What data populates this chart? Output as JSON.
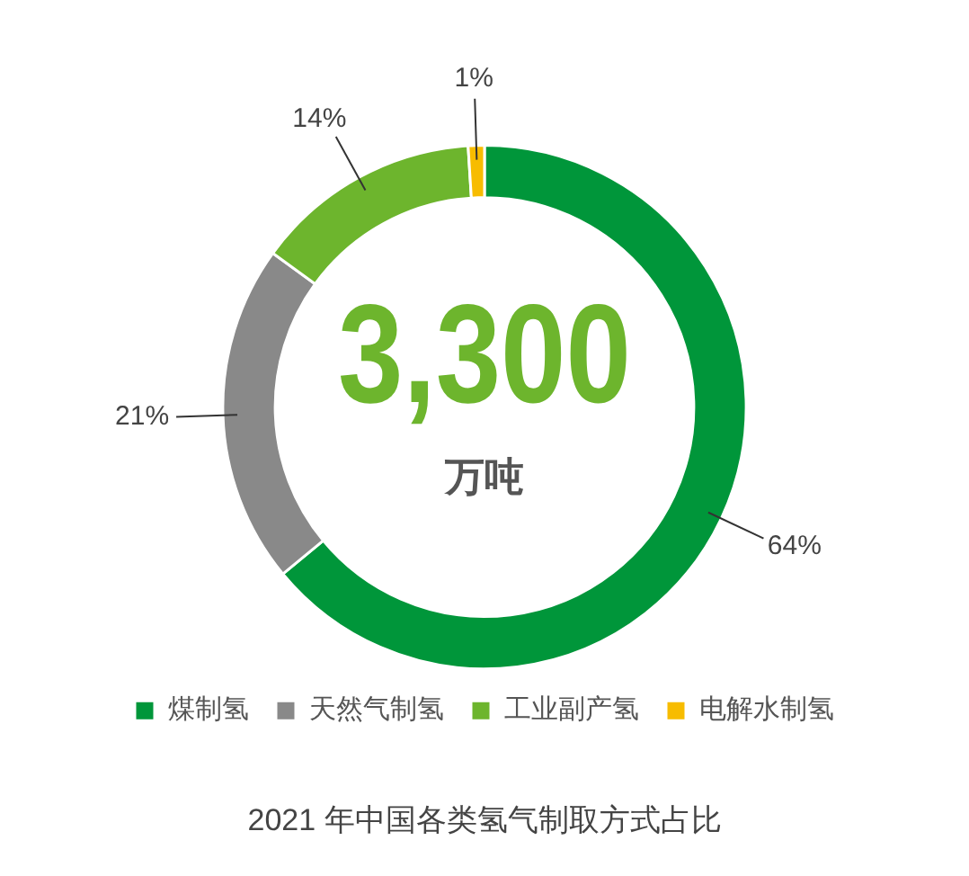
{
  "chart_data": {
    "type": "donut",
    "title": "2021 年中国各类氢气制取方式占比",
    "categories": [
      "煤制氢",
      "天然气制氢",
      "工业副产氢",
      "电解水制氢"
    ],
    "values": [
      64,
      21,
      14,
      1
    ],
    "colors": [
      "#00963a",
      "#898989",
      "#6db52d",
      "#f7bc00"
    ],
    "value_labels": [
      "64%",
      "21%",
      "14%",
      "1%"
    ],
    "annotations": [
      "3,300",
      "万吨"
    ],
    "legend": "bottom"
  }
}
